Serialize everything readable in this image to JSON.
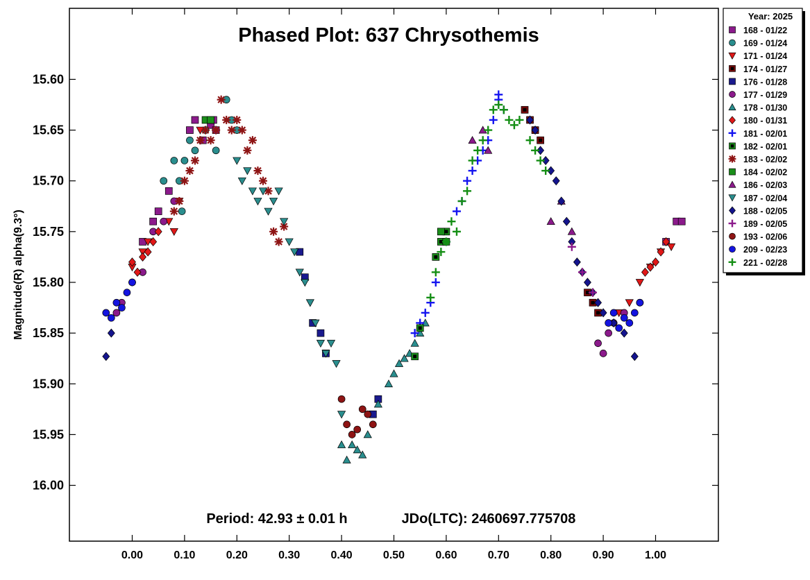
{
  "chart_data": {
    "type": "scatter",
    "title": "Phased Plot: 637 Chrysothemis",
    "xlabel": "",
    "ylabel": "Magnitude(R) alpha(9.3°)",
    "period_label": "Period: 42.93 ± 0.01 h",
    "epoch_label": "JDo(LTC): 2460697.775708",
    "xlim": [
      -0.12,
      1.12
    ],
    "ylim": [
      16.055,
      15.53
    ],
    "y_inverted": true,
    "grid": false,
    "legend_position": "right-outside-top",
    "x_ticks": [
      0.0,
      0.1,
      0.2,
      0.3,
      0.4,
      0.5,
      0.6,
      0.7,
      0.8,
      0.9,
      1.0
    ],
    "x_tick_labels": [
      "0.00",
      "0.10",
      "0.20",
      "0.30",
      "0.40",
      "0.50",
      "0.60",
      "0.70",
      "0.80",
      "0.90",
      "1.00"
    ],
    "y_ticks": [
      15.6,
      15.65,
      15.7,
      15.75,
      15.8,
      15.85,
      15.9,
      15.95,
      16.0
    ],
    "y_tick_labels": [
      "15.60",
      "15.65",
      "15.70",
      "15.75",
      "15.80",
      "15.85",
      "15.90",
      "15.95",
      "16.00"
    ],
    "legend_title": "Year: 2025",
    "series": [
      {
        "name": "168 - 01/22",
        "marker": "square",
        "color": "#8B1A8B",
        "x": [
          0.02,
          0.04,
          0.05,
          0.07,
          0.11,
          0.12,
          0.135,
          0.15,
          0.155,
          0.16,
          1.04,
          1.05,
          1.02
        ],
        "y": [
          15.76,
          15.74,
          15.73,
          15.71,
          15.65,
          15.64,
          15.66,
          15.645,
          15.64,
          15.65,
          15.74,
          15.74,
          15.76
        ]
      },
      {
        "name": "169 - 01/24",
        "marker": "circle",
        "color": "#2A8E8E",
        "x": [
          0.06,
          0.08,
          0.09,
          0.095,
          0.1,
          0.11,
          0.12,
          0.14,
          0.16,
          0.18,
          0.19,
          0.2
        ],
        "y": [
          15.7,
          15.68,
          15.7,
          15.73,
          15.68,
          15.66,
          15.67,
          15.65,
          15.67,
          15.62,
          15.64,
          15.65
        ]
      },
      {
        "name": "171 - 01/24",
        "marker": "triangle-down",
        "color": "#E01818",
        "x": [
          0.0,
          0.02,
          0.03,
          0.07,
          0.08,
          0.09,
          0.13,
          0.93,
          0.95,
          0.97,
          0.99,
          1.01,
          1.03
        ],
        "y": [
          15.785,
          15.77,
          15.76,
          15.74,
          15.75,
          15.72,
          15.65,
          15.83,
          15.82,
          15.8,
          15.785,
          15.77,
          15.765
        ]
      },
      {
        "name": "174 - 01/27",
        "marker": "square-inner",
        "color": "#7A0A0A",
        "x": [
          0.75,
          0.76,
          0.77,
          0.78,
          0.87,
          0.88,
          0.89
        ],
        "y": [
          15.63,
          15.64,
          15.65,
          15.66,
          15.81,
          15.82,
          15.83
        ]
      },
      {
        "name": "176 - 01/28",
        "marker": "square",
        "color": "#1A1A8E",
        "x": [
          0.32,
          0.33,
          0.345,
          0.36,
          0.37,
          0.46,
          0.47
        ],
        "y": [
          15.77,
          15.795,
          15.84,
          15.85,
          15.87,
          15.93,
          15.915
        ]
      },
      {
        "name": "177 - 01/29",
        "marker": "circle",
        "color": "#8B1A8B",
        "x": [
          -0.03,
          -0.02,
          0.0,
          0.02,
          0.04,
          0.06,
          0.08,
          0.89,
          0.9,
          0.91,
          0.92,
          0.94,
          0.97
        ],
        "y": [
          15.83,
          15.82,
          15.8,
          15.79,
          15.75,
          15.74,
          15.72,
          15.86,
          15.87,
          15.85,
          15.84,
          15.83,
          15.82
        ]
      },
      {
        "name": "178 - 01/30",
        "marker": "triangle",
        "color": "#2A8E8E",
        "x": [
          0.4,
          0.41,
          0.42,
          0.43,
          0.44,
          0.45,
          0.47,
          0.49,
          0.5,
          0.51,
          0.52,
          0.53,
          0.54,
          0.55,
          0.56
        ],
        "y": [
          15.96,
          15.975,
          15.96,
          15.965,
          15.97,
          15.95,
          15.92,
          15.9,
          15.89,
          15.88,
          15.875,
          15.87,
          15.86,
          15.85,
          15.84
        ]
      },
      {
        "name": "180 - 01/31",
        "marker": "diamond",
        "color": "#E01818",
        "x": [
          0.0,
          0.01,
          0.02,
          0.03,
          0.04,
          0.05,
          0.98,
          0.99,
          1.0,
          1.01,
          1.02
        ],
        "y": [
          15.78,
          15.79,
          15.775,
          15.77,
          15.76,
          15.75,
          15.79,
          15.785,
          15.78,
          15.77,
          15.76
        ]
      },
      {
        "name": "181 - 02/01",
        "marker": "plus",
        "color": "#1414F0",
        "x": [
          0.54,
          0.55,
          0.56,
          0.57,
          0.58,
          0.6,
          0.62,
          0.63,
          0.64,
          0.65,
          0.66,
          0.67,
          0.68,
          0.69,
          0.7,
          0.7,
          0.71
        ],
        "y": [
          15.85,
          15.84,
          15.83,
          15.82,
          15.8,
          15.76,
          15.73,
          15.72,
          15.7,
          15.69,
          15.68,
          15.67,
          15.66,
          15.64,
          15.62,
          15.615,
          15.63
        ]
      },
      {
        "name": "182 - 02/01",
        "marker": "square-inner",
        "color": "#1A8E1A",
        "x": [
          0.54,
          0.55,
          0.58,
          0.59,
          0.6
        ],
        "y": [
          15.873,
          15.845,
          15.775,
          15.76,
          15.75
        ]
      },
      {
        "name": "183 - 02/02",
        "marker": "asterisk",
        "color": "#8E1414",
        "x": [
          0.08,
          0.09,
          0.1,
          0.11,
          0.12,
          0.13,
          0.14,
          0.15,
          0.16,
          0.17,
          0.18,
          0.19,
          0.2,
          0.21,
          0.22,
          0.23,
          0.24,
          0.25,
          0.26,
          0.27,
          0.28,
          0.29
        ],
        "y": [
          15.73,
          15.72,
          15.7,
          15.69,
          15.68,
          15.66,
          15.65,
          15.66,
          15.65,
          15.62,
          15.64,
          15.65,
          15.64,
          15.65,
          15.67,
          15.66,
          15.69,
          15.7,
          15.71,
          15.75,
          15.76,
          15.745
        ]
      },
      {
        "name": "184 - 02/02",
        "marker": "square",
        "color": "#1A8E1A",
        "x": [
          0.14,
          0.15,
          0.59,
          0.6
        ],
        "y": [
          15.64,
          15.64,
          15.75,
          15.76
        ]
      },
      {
        "name": "186 - 02/03",
        "marker": "triangle",
        "color": "#8B1A8B",
        "x": [
          0.65,
          0.67,
          0.68,
          0.8,
          0.82,
          0.84
        ],
        "y": [
          15.66,
          15.65,
          15.67,
          15.74,
          15.72,
          15.75
        ]
      },
      {
        "name": "187 - 02/04",
        "marker": "triangle-down",
        "color": "#2A8E8E",
        "x": [
          0.2,
          0.21,
          0.22,
          0.23,
          0.24,
          0.25,
          0.26,
          0.27,
          0.28,
          0.29,
          0.3,
          0.31,
          0.32,
          0.33,
          0.34,
          0.35,
          0.36,
          0.37,
          0.38,
          0.39,
          0.4
        ],
        "y": [
          15.68,
          15.7,
          15.69,
          15.71,
          15.72,
          15.71,
          15.73,
          15.72,
          15.71,
          15.74,
          15.76,
          15.77,
          15.79,
          15.8,
          15.82,
          15.84,
          15.86,
          15.87,
          15.86,
          15.88,
          15.93
        ]
      },
      {
        "name": "188 - 02/05",
        "marker": "diamond",
        "color": "#14148E",
        "x": [
          -0.05,
          -0.04,
          0.76,
          0.77,
          0.78,
          0.79,
          0.8,
          0.81,
          0.82,
          0.83,
          0.84,
          0.85,
          0.86,
          0.87,
          0.88,
          0.89,
          0.9,
          0.92,
          0.94,
          0.96
        ],
        "y": [
          15.873,
          15.85,
          15.64,
          15.65,
          15.67,
          15.68,
          15.69,
          15.7,
          15.72,
          15.74,
          15.76,
          15.78,
          15.79,
          15.8,
          15.81,
          15.82,
          15.83,
          15.84,
          15.85,
          15.873
        ]
      },
      {
        "name": "189 - 02/05",
        "marker": "plus",
        "color": "#8B1A8B",
        "x": [
          0.84,
          0.86,
          0.88
        ],
        "y": [
          15.765,
          15.79,
          15.81
        ]
      },
      {
        "name": "193 - 02/06",
        "marker": "circle",
        "color": "#8E1414",
        "x": [
          0.4,
          0.41,
          0.42,
          0.43,
          0.44,
          0.45,
          0.46
        ],
        "y": [
          15.915,
          15.94,
          15.95,
          15.945,
          15.925,
          15.93,
          15.94
        ]
      },
      {
        "name": "209 - 02/23",
        "marker": "circle",
        "color": "#1414E0",
        "x": [
          -0.05,
          -0.04,
          -0.03,
          -0.02,
          -0.01,
          0.0,
          0.91,
          0.92,
          0.93,
          0.94,
          0.95,
          0.96,
          0.97
        ],
        "y": [
          15.83,
          15.835,
          15.82,
          15.825,
          15.81,
          15.8,
          15.84,
          15.83,
          15.845,
          15.835,
          15.84,
          15.83,
          15.82
        ]
      },
      {
        "name": "221 - 02/28",
        "marker": "plus",
        "color": "#148E14",
        "x": [
          0.57,
          0.58,
          0.59,
          0.6,
          0.61,
          0.62,
          0.63,
          0.64,
          0.65,
          0.66,
          0.67,
          0.68,
          0.69,
          0.7,
          0.71,
          0.72,
          0.73,
          0.74,
          0.76,
          0.77,
          0.78,
          0.79
        ],
        "y": [
          15.815,
          15.79,
          15.77,
          15.76,
          15.74,
          15.75,
          15.72,
          15.71,
          15.68,
          15.67,
          15.66,
          15.65,
          15.63,
          15.625,
          15.63,
          15.64,
          15.645,
          15.64,
          15.66,
          15.67,
          15.68,
          15.69
        ]
      }
    ]
  }
}
